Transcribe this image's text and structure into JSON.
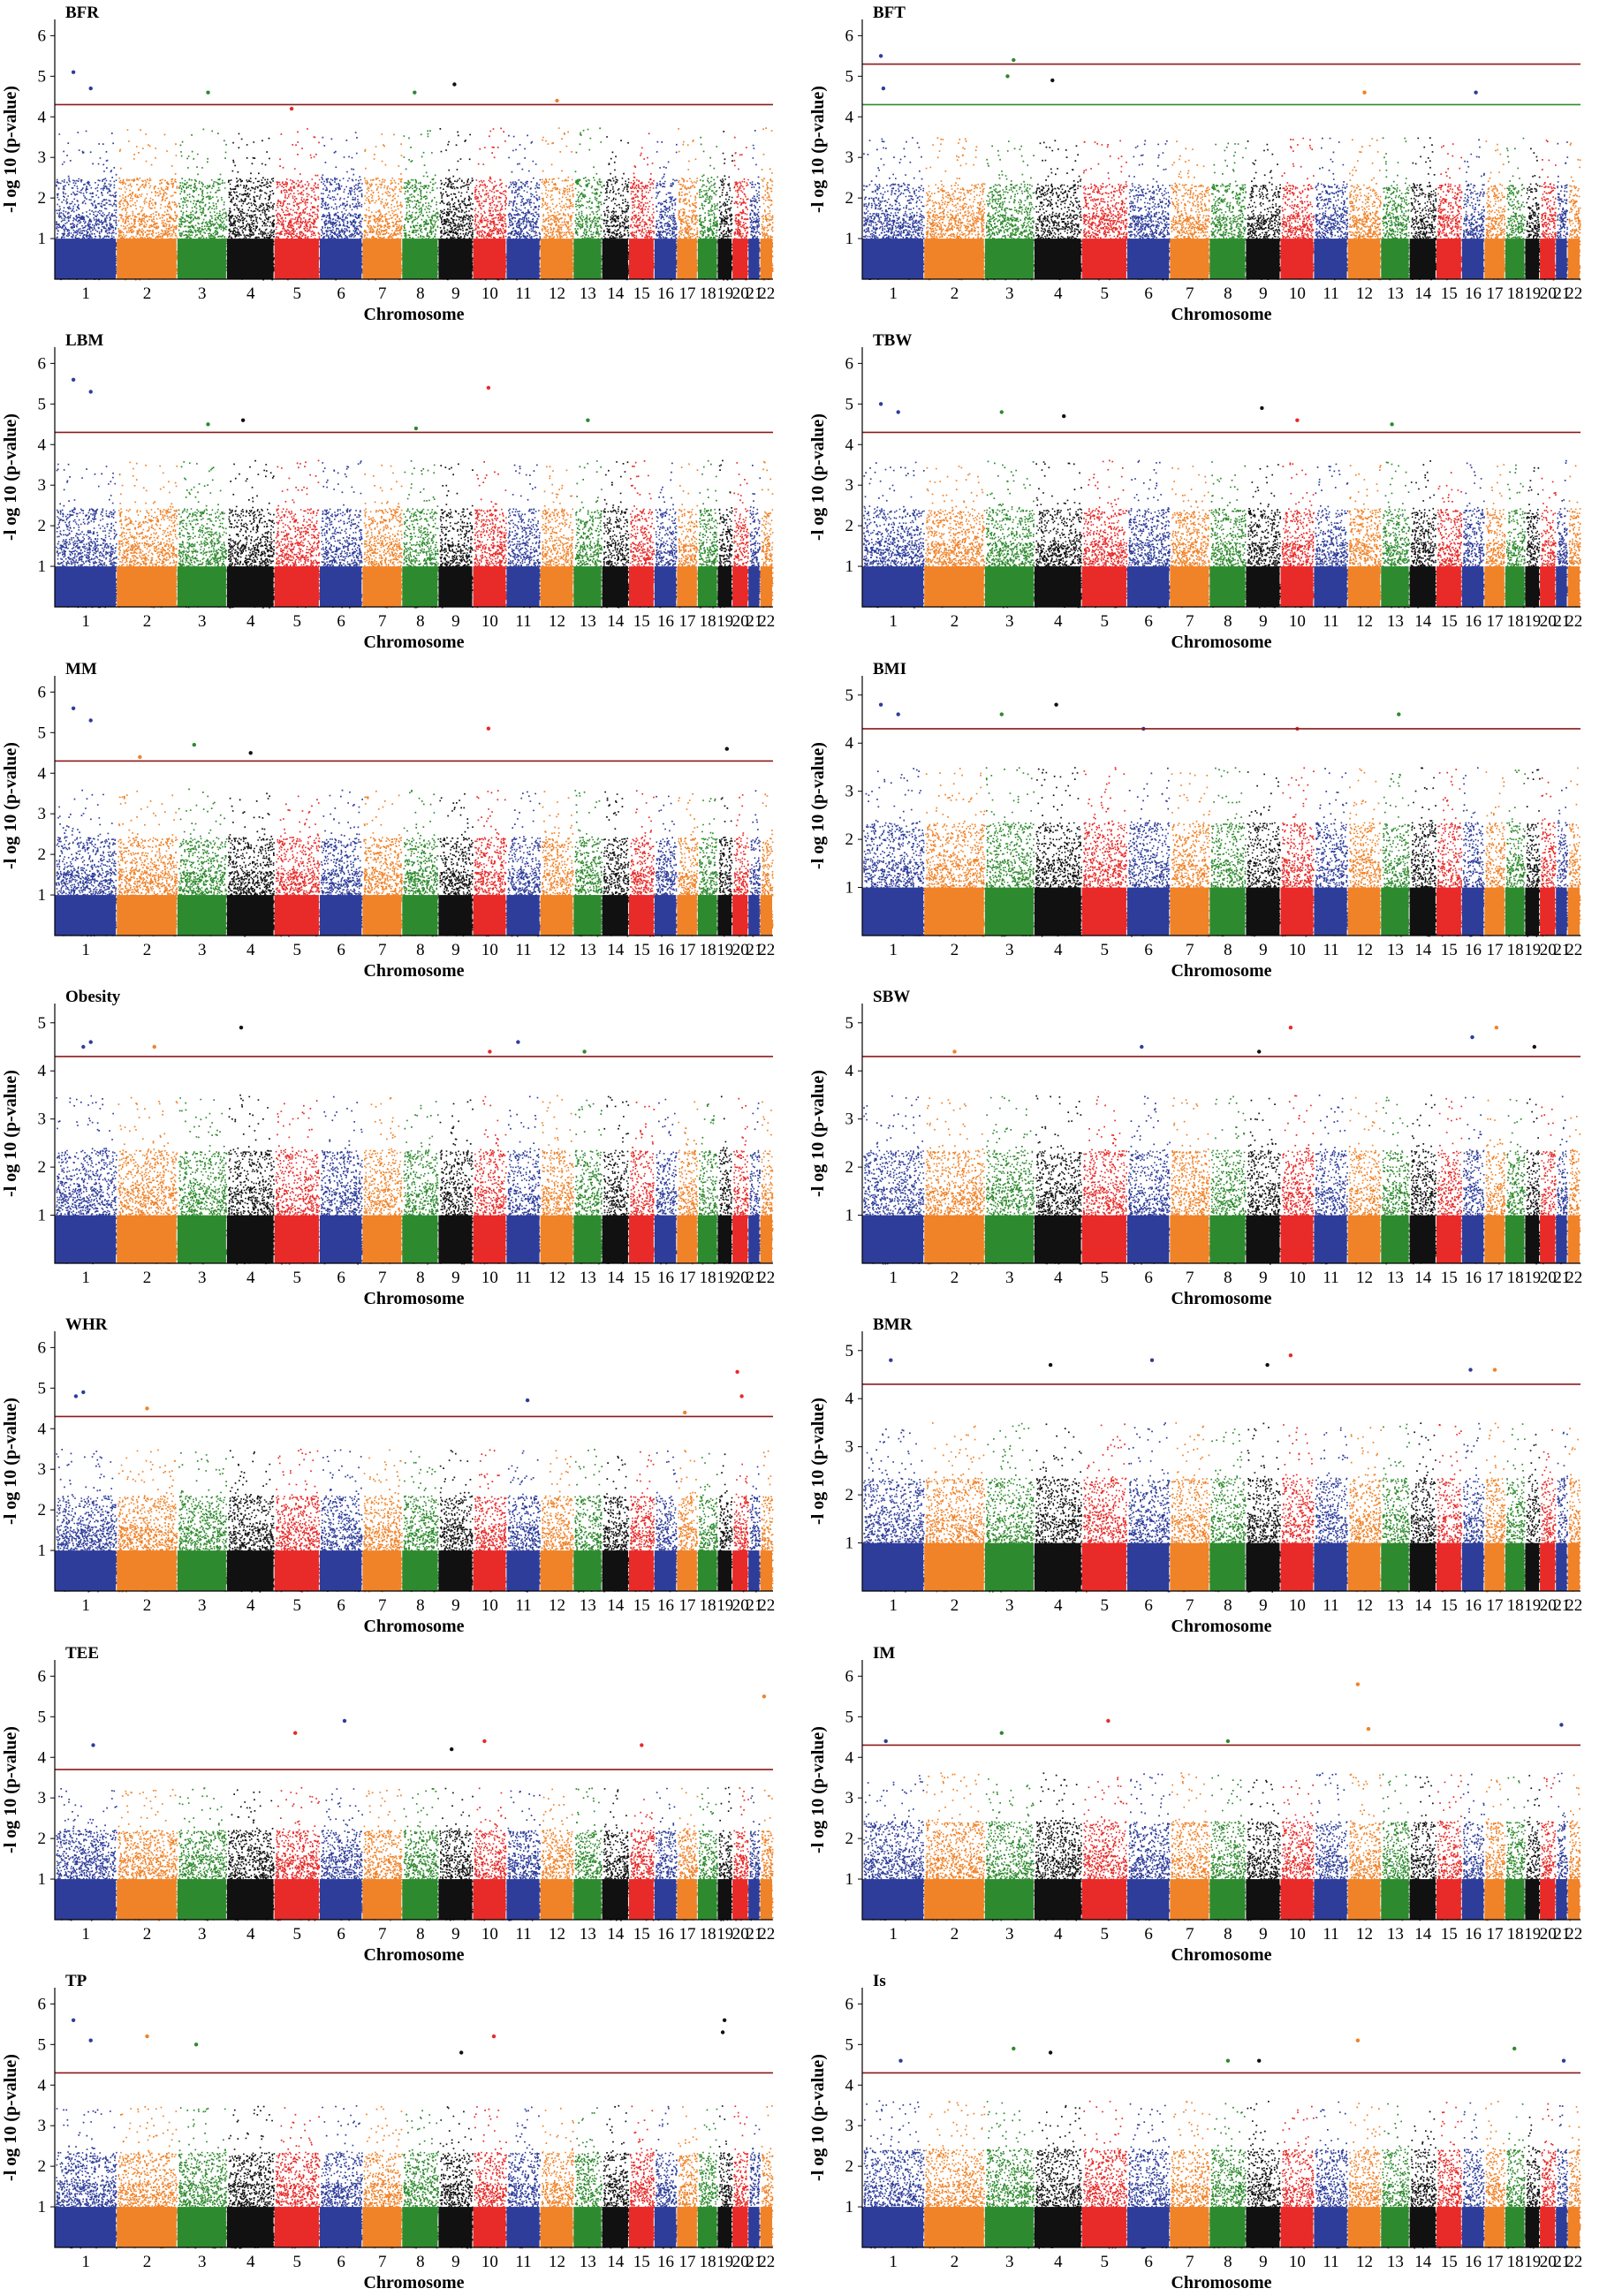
{
  "chart_data": {
    "type": "scatter",
    "subtype": "manhattan",
    "layout": "grid 7 rows x 2 columns",
    "xlabel": "Chromosome",
    "ylabel": "-l og 10 (p-value)",
    "chromosomes": [
      "1",
      "2",
      "3",
      "4",
      "5",
      "6",
      "7",
      "8",
      "9",
      "10",
      "11",
      "12",
      "13",
      "14",
      "15",
      "16",
      "17",
      "18",
      "19",
      "20",
      "21",
      "22"
    ],
    "chromosome_colors": [
      "#2e3d9a",
      "#f08228",
      "#2e8a2e",
      "#111111",
      "#e82a28"
    ],
    "threshold_color": "#8b1a1a",
    "secondary_threshold_color": "#2e8a2e",
    "panels": [
      {
        "title": "BFR",
        "ylim": [
          0,
          6.4
        ],
        "yticks": [
          1,
          2,
          3,
          4,
          5,
          6
        ],
        "threshold": 4.3,
        "base_max": 3.2,
        "peaks": [
          {
            "chr": "1",
            "value": 5.1
          },
          {
            "chr": "1",
            "value": 4.7
          },
          {
            "chr": "9",
            "value": 4.8
          },
          {
            "chr": "8",
            "value": 4.6
          },
          {
            "chr": "3",
            "value": 4.6
          },
          {
            "chr": "12",
            "value": 4.4
          },
          {
            "chr": "5",
            "value": 4.2
          }
        ]
      },
      {
        "title": "BFT",
        "ylim": [
          0,
          6.4
        ],
        "yticks": [
          1,
          2,
          3,
          4,
          5,
          6
        ],
        "threshold": 5.3,
        "threshold2": 4.3,
        "base_max": 3.0,
        "peaks": [
          {
            "chr": "1",
            "value": 5.5
          },
          {
            "chr": "3",
            "value": 5.4
          },
          {
            "chr": "3",
            "value": 5.0
          },
          {
            "chr": "1",
            "value": 4.7
          },
          {
            "chr": "16",
            "value": 4.6
          },
          {
            "chr": "12",
            "value": 4.6
          },
          {
            "chr": "4",
            "value": 4.9
          }
        ]
      },
      {
        "title": "LBM",
        "ylim": [
          0,
          6.4
        ],
        "yticks": [
          1,
          2,
          3,
          4,
          5,
          6
        ],
        "threshold": 4.3,
        "base_max": 3.1,
        "peaks": [
          {
            "chr": "1",
            "value": 5.6
          },
          {
            "chr": "1",
            "value": 5.3
          },
          {
            "chr": "10",
            "value": 5.4
          },
          {
            "chr": "4",
            "value": 4.6
          },
          {
            "chr": "3",
            "value": 4.5
          },
          {
            "chr": "13",
            "value": 4.6
          },
          {
            "chr": "8",
            "value": 4.4
          }
        ]
      },
      {
        "title": "TBW",
        "ylim": [
          0,
          6.4
        ],
        "yticks": [
          1,
          2,
          3,
          4,
          5,
          6
        ],
        "threshold": 4.3,
        "base_max": 3.1,
        "peaks": [
          {
            "chr": "1",
            "value": 5.0
          },
          {
            "chr": "1",
            "value": 4.8
          },
          {
            "chr": "9",
            "value": 4.9
          },
          {
            "chr": "3",
            "value": 4.8
          },
          {
            "chr": "4",
            "value": 4.7
          },
          {
            "chr": "10",
            "value": 4.6
          },
          {
            "chr": "13",
            "value": 4.5
          }
        ]
      },
      {
        "title": "MM",
        "ylim": [
          0,
          6.4
        ],
        "yticks": [
          1,
          2,
          3,
          4,
          5,
          6
        ],
        "threshold": 4.3,
        "base_max": 3.1,
        "peaks": [
          {
            "chr": "1",
            "value": 5.6
          },
          {
            "chr": "1",
            "value": 5.3
          },
          {
            "chr": "10",
            "value": 5.1
          },
          {
            "chr": "3",
            "value": 4.7
          },
          {
            "chr": "19",
            "value": 4.6
          },
          {
            "chr": "4",
            "value": 4.5
          },
          {
            "chr": "2",
            "value": 4.4
          }
        ]
      },
      {
        "title": "BMI",
        "ylim": [
          0,
          5.4
        ],
        "yticks": [
          1,
          2,
          3,
          4,
          5
        ],
        "threshold": 4.3,
        "base_max": 3.0,
        "peaks": [
          {
            "chr": "1",
            "value": 4.8
          },
          {
            "chr": "1",
            "value": 4.6
          },
          {
            "chr": "4",
            "value": 4.8
          },
          {
            "chr": "3",
            "value": 4.6
          },
          {
            "chr": "13",
            "value": 4.6
          },
          {
            "chr": "10",
            "value": 4.3
          },
          {
            "chr": "6",
            "value": 4.3
          }
        ]
      },
      {
        "title": "Obesity",
        "ylim": [
          0,
          5.4
        ],
        "yticks": [
          1,
          2,
          3,
          4,
          5
        ],
        "threshold": 4.3,
        "base_max": 3.0,
        "peaks": [
          {
            "chr": "4",
            "value": 4.9
          },
          {
            "chr": "1",
            "value": 4.6
          },
          {
            "chr": "1",
            "value": 4.5
          },
          {
            "chr": "11",
            "value": 4.6
          },
          {
            "chr": "2",
            "value": 4.5
          },
          {
            "chr": "10",
            "value": 4.4
          },
          {
            "chr": "13",
            "value": 4.4
          }
        ]
      },
      {
        "title": "SBW",
        "ylim": [
          0,
          5.4
        ],
        "yticks": [
          1,
          2,
          3,
          4,
          5
        ],
        "threshold": 4.3,
        "base_max": 3.0,
        "peaks": [
          {
            "chr": "10",
            "value": 4.9
          },
          {
            "chr": "17",
            "value": 4.9
          },
          {
            "chr": "16",
            "value": 4.7
          },
          {
            "chr": "6",
            "value": 4.5
          },
          {
            "chr": "19",
            "value": 4.5
          },
          {
            "chr": "2",
            "value": 4.4
          },
          {
            "chr": "9",
            "value": 4.4
          }
        ]
      },
      {
        "title": "WHR",
        "ylim": [
          0,
          6.4
        ],
        "yticks": [
          1,
          2,
          3,
          4,
          5,
          6
        ],
        "threshold": 4.3,
        "base_max": 3.0,
        "peaks": [
          {
            "chr": "20",
            "value": 5.4
          },
          {
            "chr": "20",
            "value": 4.8
          },
          {
            "chr": "1",
            "value": 4.9
          },
          {
            "chr": "1",
            "value": 4.8
          },
          {
            "chr": "11",
            "value": 4.7
          },
          {
            "chr": "2",
            "value": 4.5
          },
          {
            "chr": "17",
            "value": 4.4
          }
        ]
      },
      {
        "title": "BMR",
        "ylim": [
          0,
          5.4
        ],
        "yticks": [
          1,
          2,
          3,
          4,
          5
        ],
        "threshold": 4.3,
        "base_max": 3.0,
        "peaks": [
          {
            "chr": "10",
            "value": 4.9
          },
          {
            "chr": "6",
            "value": 4.8
          },
          {
            "chr": "1",
            "value": 4.8
          },
          {
            "chr": "4",
            "value": 4.7
          },
          {
            "chr": "9",
            "value": 4.7
          },
          {
            "chr": "17",
            "value": 4.6
          },
          {
            "chr": "16",
            "value": 4.6
          }
        ]
      },
      {
        "title": "TEE",
        "ylim": [
          0,
          6.4
        ],
        "yticks": [
          1,
          2,
          3,
          4,
          5,
          6
        ],
        "threshold": 3.7,
        "base_max": 2.8,
        "peaks": [
          {
            "chr": "22",
            "value": 5.5
          },
          {
            "chr": "6",
            "value": 4.9
          },
          {
            "chr": "5",
            "value": 4.6
          },
          {
            "chr": "10",
            "value": 4.4
          },
          {
            "chr": "1",
            "value": 4.3
          },
          {
            "chr": "15",
            "value": 4.3
          },
          {
            "chr": "9",
            "value": 4.2
          }
        ]
      },
      {
        "title": "IM",
        "ylim": [
          0,
          6.4
        ],
        "yticks": [
          1,
          2,
          3,
          4,
          5,
          6
        ],
        "threshold": 4.3,
        "base_max": 3.1,
        "peaks": [
          {
            "chr": "12",
            "value": 5.8
          },
          {
            "chr": "5",
            "value": 4.9
          },
          {
            "chr": "21",
            "value": 4.8
          },
          {
            "chr": "3",
            "value": 4.6
          },
          {
            "chr": "12",
            "value": 4.7
          },
          {
            "chr": "8",
            "value": 4.4
          },
          {
            "chr": "1",
            "value": 4.4
          }
        ]
      },
      {
        "title": "TP",
        "ylim": [
          0,
          6.4
        ],
        "yticks": [
          1,
          2,
          3,
          4,
          5,
          6
        ],
        "threshold": 4.3,
        "base_max": 3.0,
        "peaks": [
          {
            "chr": "1",
            "value": 5.6
          },
          {
            "chr": "1",
            "value": 5.1
          },
          {
            "chr": "19",
            "value": 5.6
          },
          {
            "chr": "19",
            "value": 5.3
          },
          {
            "chr": "10",
            "value": 5.2
          },
          {
            "chr": "2",
            "value": 5.2
          },
          {
            "chr": "3",
            "value": 5.0
          },
          {
            "chr": "9",
            "value": 4.8
          }
        ]
      },
      {
        "title": "Is",
        "ylim": [
          0,
          6.4
        ],
        "yticks": [
          1,
          2,
          3,
          4,
          5,
          6
        ],
        "threshold": 4.3,
        "base_max": 3.1,
        "peaks": [
          {
            "chr": "12",
            "value": 5.1
          },
          {
            "chr": "3",
            "value": 4.9
          },
          {
            "chr": "18",
            "value": 4.9
          },
          {
            "chr": "4",
            "value": 4.8
          },
          {
            "chr": "1",
            "value": 4.6
          },
          {
            "chr": "8",
            "value": 4.6
          },
          {
            "chr": "9",
            "value": 4.6
          },
          {
            "chr": "21",
            "value": 4.6
          }
        ]
      }
    ]
  }
}
